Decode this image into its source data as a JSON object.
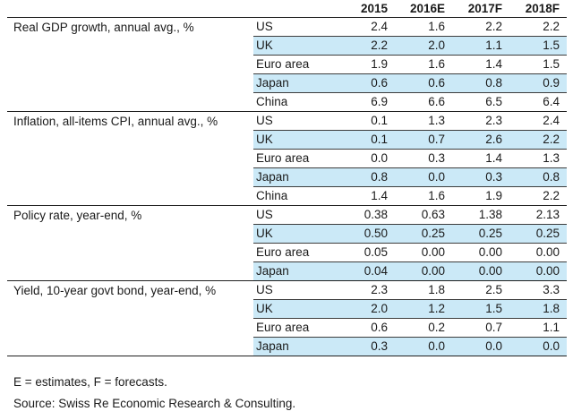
{
  "chart_data": {
    "type": "table",
    "columns": [
      "2015",
      "2016E",
      "2017F",
      "2018F"
    ],
    "sections": [
      {
        "label": "Real GDP growth, annual avg., %",
        "rows": [
          {
            "region": "US",
            "values": [
              "2.4",
              "1.6",
              "2.2",
              "2.2"
            ],
            "highlighted": false
          },
          {
            "region": "UK",
            "values": [
              "2.2",
              "2.0",
              "1.1",
              "1.5"
            ],
            "highlighted": true
          },
          {
            "region": "Euro area",
            "values": [
              "1.9",
              "1.6",
              "1.4",
              "1.5"
            ],
            "highlighted": false
          },
          {
            "region": "Japan",
            "values": [
              "0.6",
              "0.6",
              "0.8",
              "0.9"
            ],
            "highlighted": true
          },
          {
            "region": "China",
            "values": [
              "6.9",
              "6.6",
              "6.5",
              "6.4"
            ],
            "highlighted": false
          }
        ]
      },
      {
        "label": "Inflation, all-items CPI, annual avg., %",
        "rows": [
          {
            "region": "US",
            "values": [
              "0.1",
              "1.3",
              "2.3",
              "2.4"
            ],
            "highlighted": false
          },
          {
            "region": "UK",
            "values": [
              "0.1",
              "0.7",
              "2.6",
              "2.2"
            ],
            "highlighted": true
          },
          {
            "region": "Euro area",
            "values": [
              "0.0",
              "0.3",
              "1.4",
              "1.3"
            ],
            "highlighted": false
          },
          {
            "region": "Japan",
            "values": [
              "0.8",
              "0.0",
              "0.3",
              "0.8"
            ],
            "highlighted": true
          },
          {
            "region": "China",
            "values": [
              "1.4",
              "1.6",
              "1.9",
              "2.2"
            ],
            "highlighted": false
          }
        ]
      },
      {
        "label": "Policy rate, year-end, %",
        "rows": [
          {
            "region": "US",
            "values": [
              "0.38",
              "0.63",
              "1.38",
              "2.13"
            ],
            "highlighted": false
          },
          {
            "region": "UK",
            "values": [
              "0.50",
              "0.25",
              "0.25",
              "0.25"
            ],
            "highlighted": true
          },
          {
            "region": "Euro area",
            "values": [
              "0.05",
              "0.00",
              "0.00",
              "0.00"
            ],
            "highlighted": false
          },
          {
            "region": "Japan",
            "values": [
              "0.04",
              "0.00",
              "0.00",
              "0.00"
            ],
            "highlighted": true
          }
        ]
      },
      {
        "label": "Yield, 10-year govt bond, year-end, %",
        "rows": [
          {
            "region": "US",
            "values": [
              "2.3",
              "1.8",
              "2.5",
              "3.3"
            ],
            "highlighted": false
          },
          {
            "region": "UK",
            "values": [
              "2.0",
              "1.2",
              "1.5",
              "1.8"
            ],
            "highlighted": true
          },
          {
            "region": "Euro area",
            "values": [
              "0.6",
              "0.2",
              "0.7",
              "1.1"
            ],
            "highlighted": false
          },
          {
            "region": "Japan",
            "values": [
              "0.3",
              "0.0",
              "0.0",
              "0.0"
            ],
            "highlighted": true
          }
        ]
      }
    ],
    "layout": {
      "value_alignment": "right",
      "grid": "thin horizontal rules between rows over data columns; heavy full-width rules between sections and below header and at table bottom",
      "highlight_pattern": "2nd and 4th row of each section shaded"
    }
  },
  "footnotes": {
    "legend": "E = estimates, F = forecasts.",
    "source": "Source: Swiss Re Economic Research & Consulting."
  },
  "colors": {
    "text": "#1a1a1a",
    "section_line": "#1f1f1f",
    "row_line": "#3d3d3d",
    "row_highlight": "#cbe9f7",
    "background": "#ffffff"
  }
}
